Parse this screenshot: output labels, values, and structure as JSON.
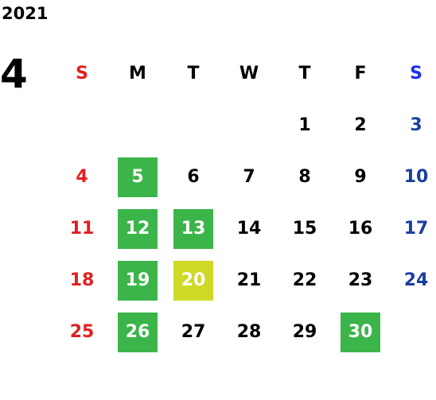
{
  "year": "2021",
  "month": "4",
  "colors": {
    "sunday": "#e02020",
    "saturday": "#1a3fa0",
    "saturday_header": "#1a2ff0",
    "weekday": "#000000",
    "highlight_green": "#3bb54a",
    "highlight_yellow": "#cfd927",
    "highlight_text": "#ffffff"
  },
  "weekdays": [
    "S",
    "M",
    "T",
    "W",
    "T",
    "F",
    "S"
  ],
  "weeks": [
    [
      {
        "day": ""
      },
      {
        "day": ""
      },
      {
        "day": ""
      },
      {
        "day": ""
      },
      {
        "day": "1"
      },
      {
        "day": "2"
      },
      {
        "day": "3"
      }
    ],
    [
      {
        "day": "4"
      },
      {
        "day": "5",
        "highlight": "green"
      },
      {
        "day": "6"
      },
      {
        "day": "7"
      },
      {
        "day": "8"
      },
      {
        "day": "9"
      },
      {
        "day": "10"
      }
    ],
    [
      {
        "day": "11"
      },
      {
        "day": "12",
        "highlight": "green"
      },
      {
        "day": "13",
        "highlight": "green"
      },
      {
        "day": "14"
      },
      {
        "day": "15"
      },
      {
        "day": "16"
      },
      {
        "day": "17"
      }
    ],
    [
      {
        "day": "18"
      },
      {
        "day": "19",
        "highlight": "green"
      },
      {
        "day": "20",
        "highlight": "yellow"
      },
      {
        "day": "21"
      },
      {
        "day": "22"
      },
      {
        "day": "23"
      },
      {
        "day": "24"
      }
    ],
    [
      {
        "day": "25"
      },
      {
        "day": "26",
        "highlight": "green"
      },
      {
        "day": "27"
      },
      {
        "day": "28"
      },
      {
        "day": "29"
      },
      {
        "day": "30",
        "highlight": "green"
      },
      {
        "day": ""
      }
    ]
  ]
}
